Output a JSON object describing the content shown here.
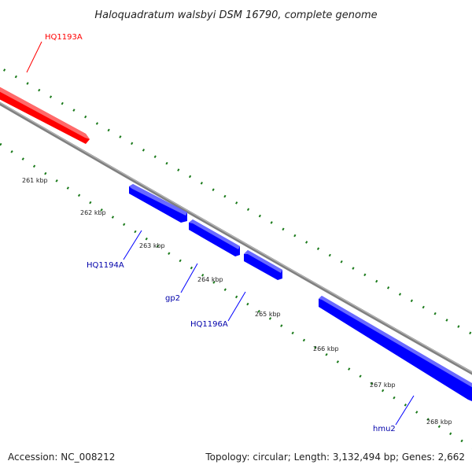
{
  "title": "Haloquadratum walsbyi DSM 16790, complete genome",
  "footer": {
    "accession": "Accession: NC_008212",
    "summary": "Topology: circular; Length: 3,132,494 bp; Genes: 2,662"
  },
  "colors": {
    "forward_strand": "#ff0000",
    "reverse_strand": "#0000ff",
    "backbone": "#808080",
    "ticks": "#1a7a1a",
    "text": "#222222"
  },
  "tick_labels": [
    "261 kbp",
    "262 kbp",
    "263 kbp",
    "264 kbp",
    "265 kbp",
    "266 kbp",
    "267 kbp",
    "268 kbp"
  ],
  "genes": [
    {
      "name": "HQ1193A",
      "strand": "forward"
    },
    {
      "name": "HQ1194A",
      "strand": "reverse"
    },
    {
      "name": "gp2",
      "strand": "reverse"
    },
    {
      "name": "HQ1196A",
      "strand": "reverse"
    },
    {
      "name": "hmu2",
      "strand": "reverse"
    }
  ]
}
